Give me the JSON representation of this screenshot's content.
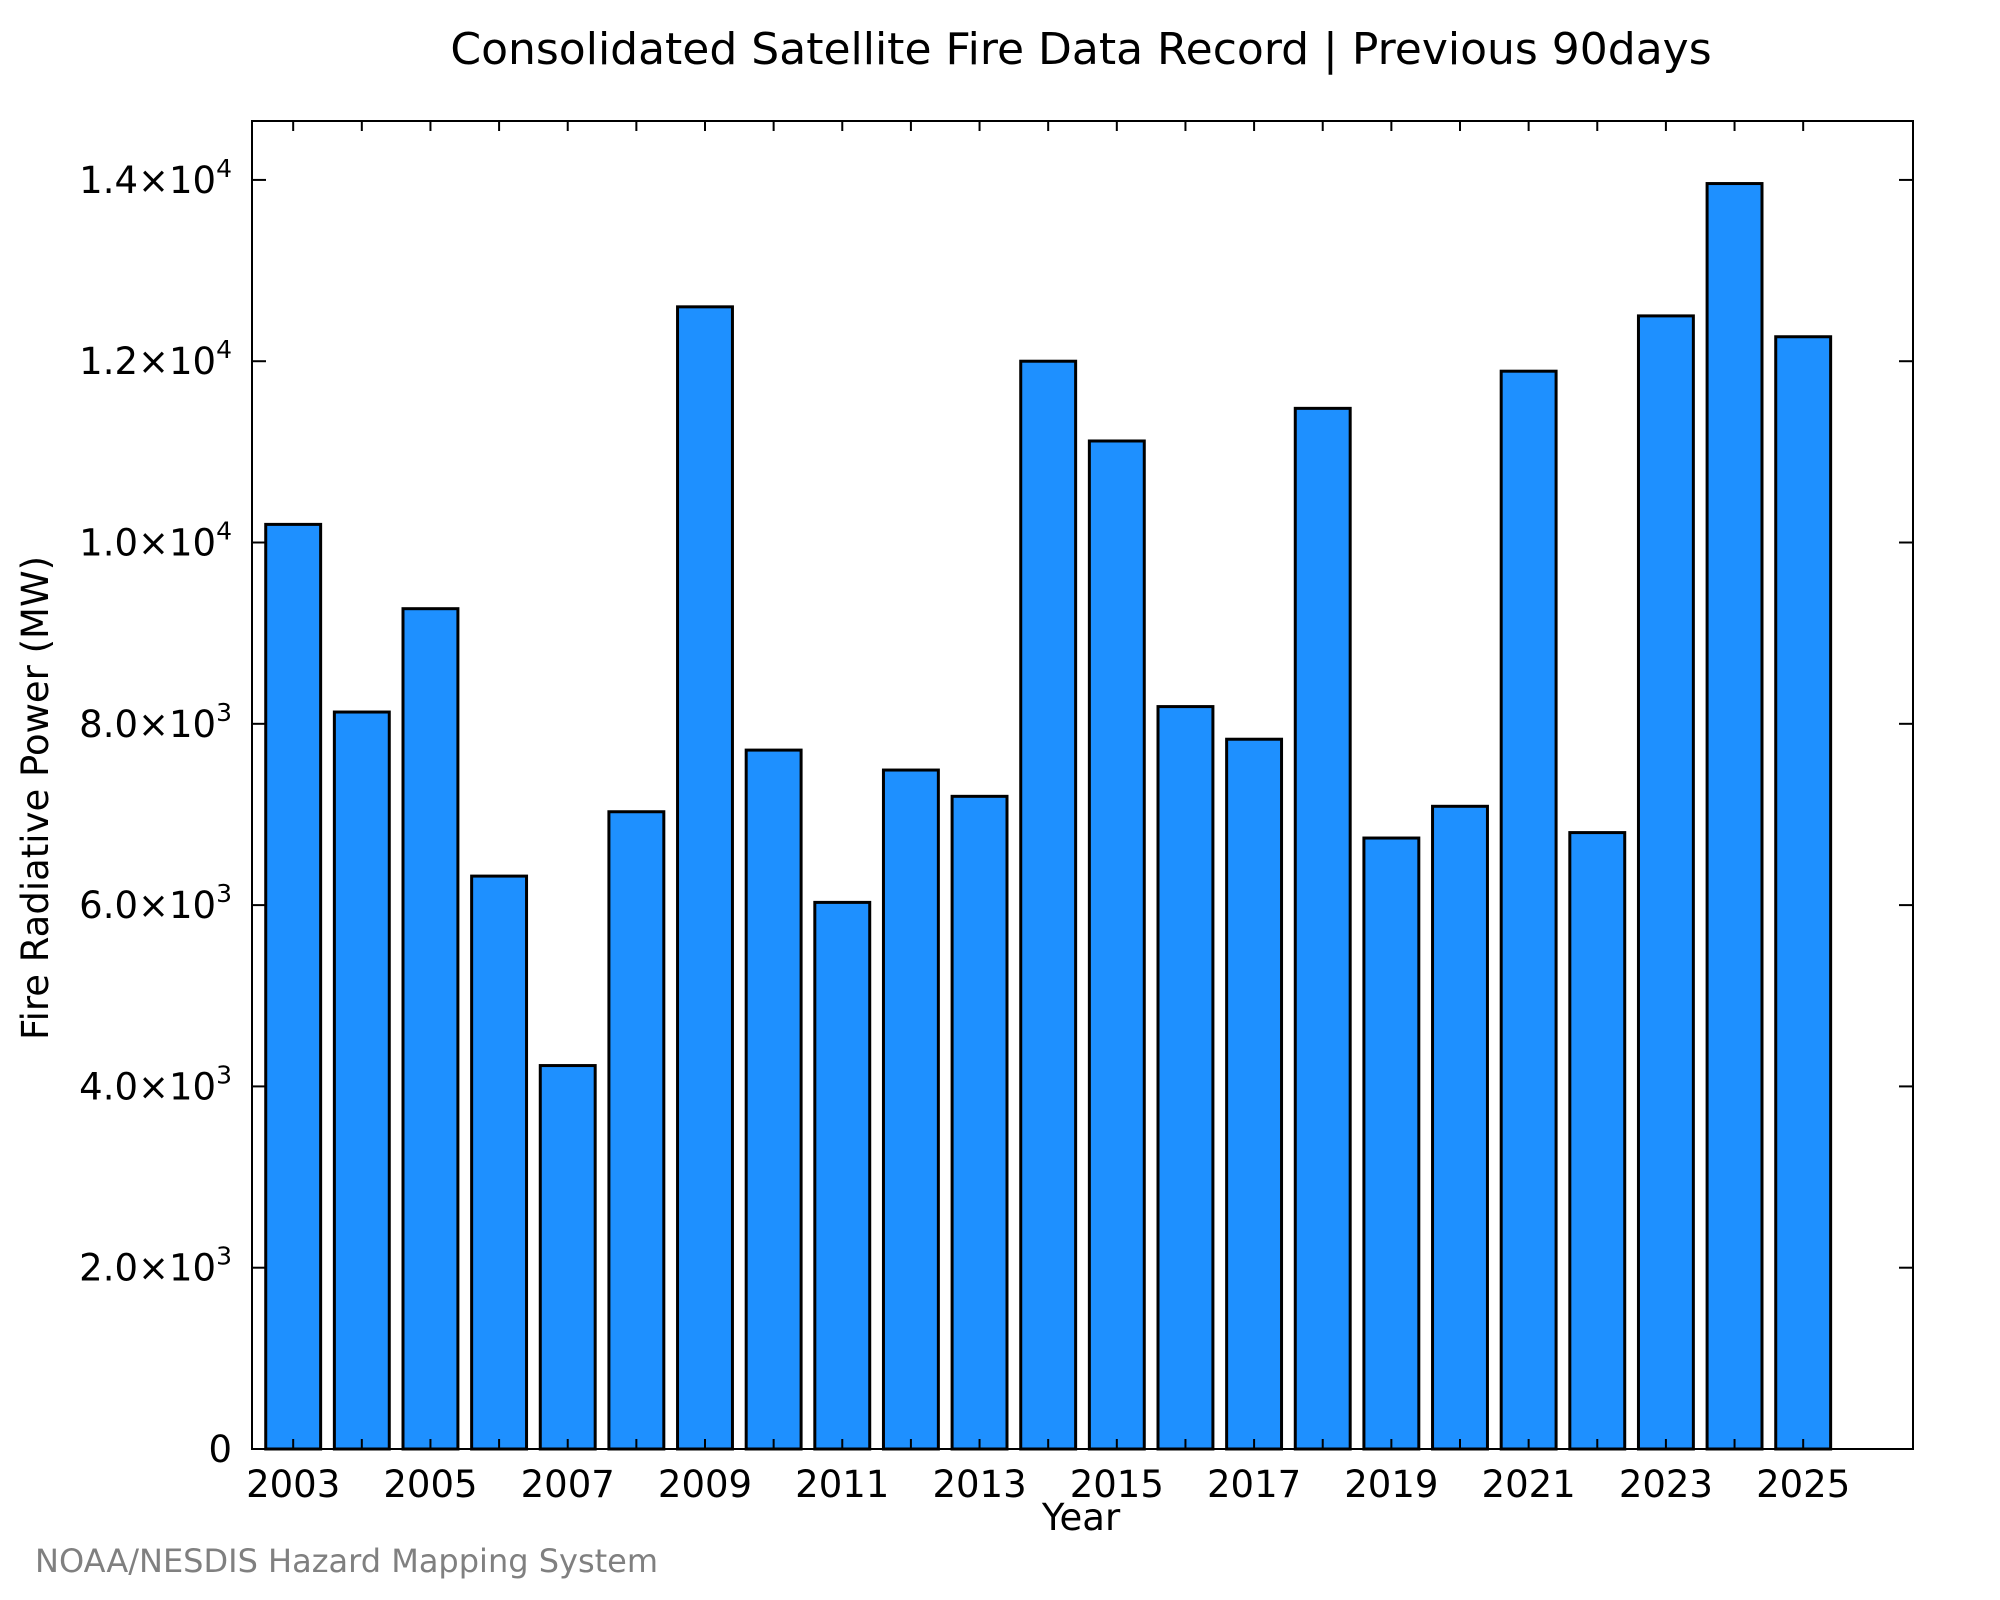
{
  "chart_data": {
    "type": "bar",
    "title": "Consolidated Satellite Fire Data Record | Previous 90days",
    "xlabel": "Year",
    "ylabel": "Fire Radiative Power (MW)",
    "credit": "NOAA/NESDIS Hazard Mapping System",
    "categories": [
      "2003",
      "2004",
      "2005",
      "2006",
      "2007",
      "2008",
      "2009",
      "2010",
      "2011",
      "2012",
      "2013",
      "2014",
      "2015",
      "2016",
      "2017",
      "2018",
      "2019",
      "2020",
      "2021",
      "2022",
      "2023",
      "2024",
      "2025"
    ],
    "values": [
      10200,
      8130,
      9270,
      6320,
      4230,
      7030,
      12600,
      7710,
      6030,
      7490,
      7200,
      12000,
      11120,
      8190,
      7830,
      11480,
      6740,
      7090,
      11890,
      6800,
      12500,
      13960,
      12270
    ],
    "x_tick_labels": [
      "2003",
      "2005",
      "2007",
      "2009",
      "2011",
      "2013",
      "2015",
      "2017",
      "2019",
      "2021",
      "2023",
      "2025"
    ],
    "y_ticks": [
      {
        "value": 0,
        "mantissa": "0",
        "exp": ""
      },
      {
        "value": 2000,
        "mantissa": "2.0×10",
        "exp": "3"
      },
      {
        "value": 4000,
        "mantissa": "4.0×10",
        "exp": "3"
      },
      {
        "value": 6000,
        "mantissa": "6.0×10",
        "exp": "3"
      },
      {
        "value": 8000,
        "mantissa": "8.0×10",
        "exp": "3"
      },
      {
        "value": 10000,
        "mantissa": "1.0×10",
        "exp": "4"
      },
      {
        "value": 12000,
        "mantissa": "1.2×10",
        "exp": "4"
      },
      {
        "value": 14000,
        "mantissa": "1.4×10",
        "exp": "4"
      }
    ],
    "ylim": [
      0,
      14650
    ],
    "xlim": [
      2002.4,
      2026.6
    ],
    "bar_color": "#1E90FF",
    "edge_color": "#000000",
    "grid": false,
    "legend": "none"
  }
}
